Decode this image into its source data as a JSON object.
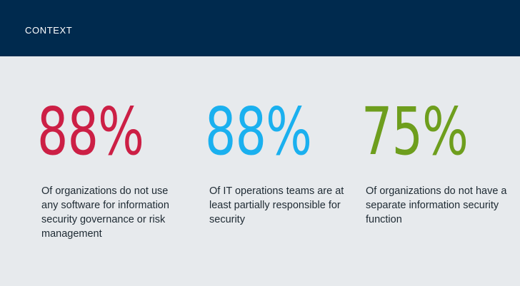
{
  "header": {
    "title": "CONTEXT",
    "background_color": "#002a4e"
  },
  "stats": [
    {
      "value": "88%",
      "color": "#cc1f45",
      "description": "Of organizations do not use any software for information security governance or risk management"
    },
    {
      "value": "88%",
      "color": "#1ab0ef",
      "description": "Of  IT operations teams are at least partially responsible for security"
    },
    {
      "value": "75%",
      "color": "#6e9e1d",
      "description": "Of organizations do not have a separate information security function"
    }
  ]
}
